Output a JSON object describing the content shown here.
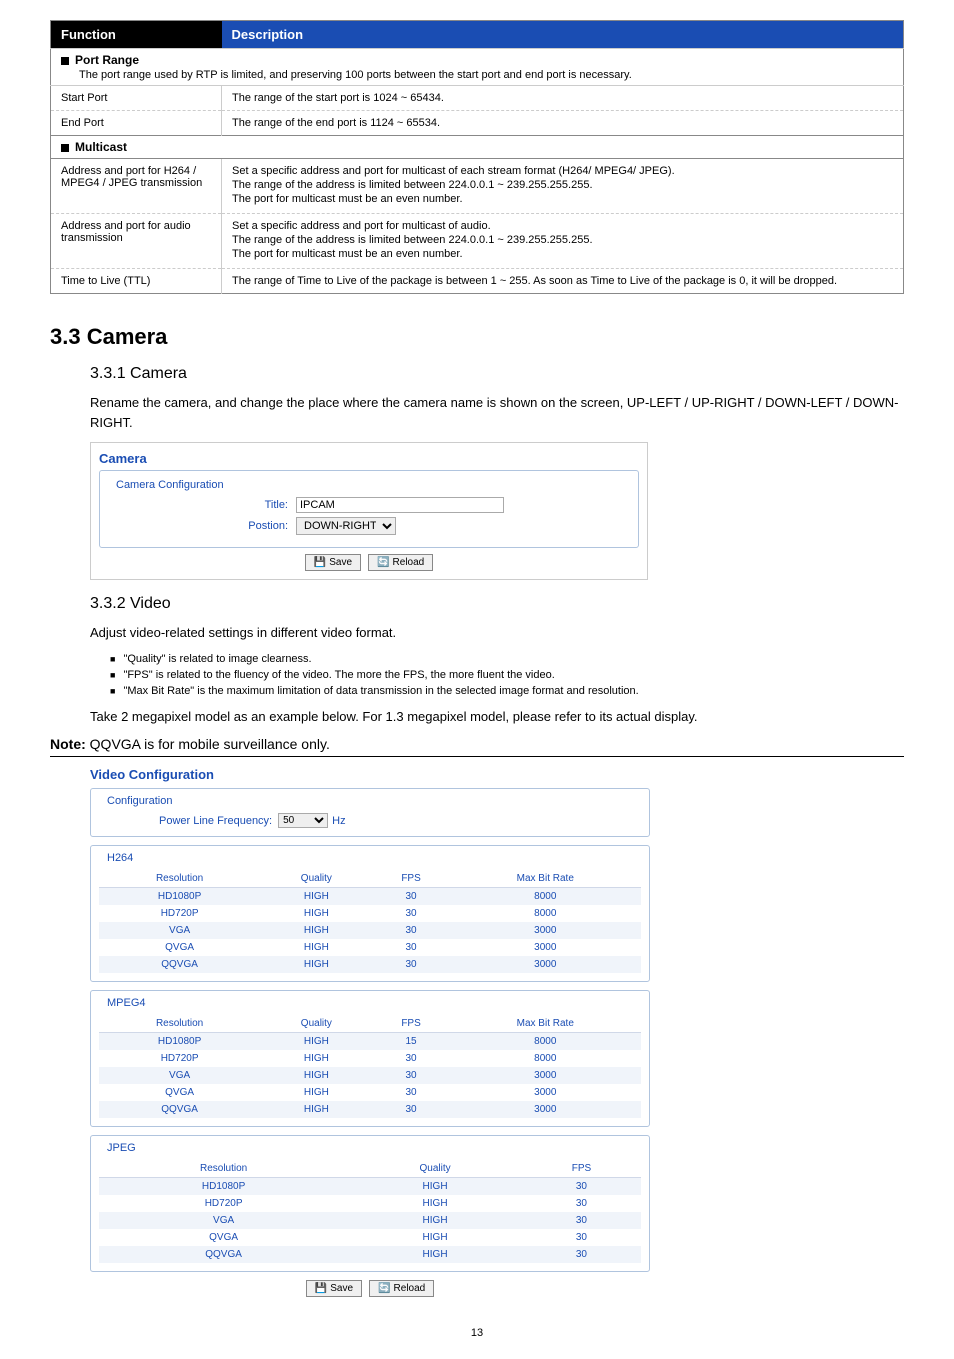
{
  "funcTable": {
    "headers": {
      "func": "Function",
      "desc": "Description"
    },
    "portRange": {
      "title": "Port Range",
      "desc": "The port range used by RTP is limited, and preserving 100 ports between the start port and end port is necessary."
    },
    "startPort": {
      "label": "Start Port",
      "desc": "The range of the start port is 1024 ~ 65434."
    },
    "endPort": {
      "label": "End Port",
      "desc": "The range of the end port is 1124 ~ 65534."
    },
    "multicast": {
      "title": "Multicast"
    },
    "addrStream": {
      "label": "Address and port for H264 / MPEG4 / JPEG transmission",
      "l1": "Set a specific address and port for multicast of each stream format (H264/ MPEG4/ JPEG).",
      "l2": "The range of the address is limited between 224.0.0.1 ~ 239.255.255.255.",
      "l3": "The port for multicast must be an even number."
    },
    "addrAudio": {
      "label": "Address and port for audio transmission",
      "l1": "Set a specific address and port for multicast of audio.",
      "l2": "The range of the address is limited between 224.0.0.1 ~ 239.255.255.255.",
      "l3": "The port for multicast must be an even number."
    },
    "ttl": {
      "label": "Time to Live (TTL)",
      "desc": "The range of Time to Live of the package is between 1 ~ 255. As soon as Time to Live of the package is 0, it will be dropped."
    }
  },
  "headings": {
    "h33": "3.3 Camera",
    "h331": "3.3.1 Camera",
    "h332": "3.3.2 Video"
  },
  "text": {
    "p331": "Rename the camera, and change the place where the camera name is shown on the screen, UP-LEFT / UP-RIGHT / DOWN-LEFT / DOWN-RIGHT.",
    "p332": "Adjust video-related settings in different video format.",
    "b1": "\"Quality\" is related to image clearness.",
    "b2": "\"FPS\" is related to the fluency of the video. The more the FPS, the more fluent the video.",
    "b3": "\"Max Bit Rate\" is the maximum limitation of data transmission in the selected image format and resolution.",
    "p332b": "Take 2 megapixel model as an example below. For 1.3 megapixel model, please refer to its actual display.",
    "noteLabel": "Note:",
    "noteText": "QQVGA is for mobile surveillance only."
  },
  "cameraPanel": {
    "title": "Camera",
    "fsLabel": "Camera Configuration",
    "titleLabel": "Title:",
    "titleValue": "IPCAM",
    "posLabel": "Postion:",
    "posValue": "DOWN-RIGHT",
    "save": "Save",
    "reload": "Reload"
  },
  "videoPanel": {
    "title": "Video Configuration",
    "configLabel": "Configuration",
    "freqLabel": "Power Line Frequency:",
    "freqValue": "50",
    "hz": "Hz",
    "cols4": {
      "res": "Resolution",
      "q": "Quality",
      "fps": "FPS",
      "mbr": "Max Bit Rate"
    },
    "cols3": {
      "res": "Resolution",
      "q": "Quality",
      "fps": "FPS"
    },
    "h264": {
      "label": "H264",
      "rows": [
        {
          "r": "HD1080P",
          "q": "HIGH",
          "f": "30",
          "m": "8000"
        },
        {
          "r": "HD720P",
          "q": "HIGH",
          "f": "30",
          "m": "8000"
        },
        {
          "r": "VGA",
          "q": "HIGH",
          "f": "30",
          "m": "3000"
        },
        {
          "r": "QVGA",
          "q": "HIGH",
          "f": "30",
          "m": "3000"
        },
        {
          "r": "QQVGA",
          "q": "HIGH",
          "f": "30",
          "m": "3000"
        }
      ]
    },
    "mpeg4": {
      "label": "MPEG4",
      "rows": [
        {
          "r": "HD1080P",
          "q": "HIGH",
          "f": "15",
          "m": "8000"
        },
        {
          "r": "HD720P",
          "q": "HIGH",
          "f": "30",
          "m": "8000"
        },
        {
          "r": "VGA",
          "q": "HIGH",
          "f": "30",
          "m": "3000"
        },
        {
          "r": "QVGA",
          "q": "HIGH",
          "f": "30",
          "m": "3000"
        },
        {
          "r": "QQVGA",
          "q": "HIGH",
          "f": "30",
          "m": "3000"
        }
      ]
    },
    "jpeg": {
      "label": "JPEG",
      "rows": [
        {
          "r": "HD1080P",
          "q": "HIGH",
          "f": "30"
        },
        {
          "r": "HD720P",
          "q": "HIGH",
          "f": "30"
        },
        {
          "r": "VGA",
          "q": "HIGH",
          "f": "30"
        },
        {
          "r": "QVGA",
          "q": "HIGH",
          "f": "30"
        },
        {
          "r": "QQVGA",
          "q": "HIGH",
          "f": "30"
        }
      ]
    },
    "save": "Save",
    "reload": "Reload"
  },
  "pageNum": "13"
}
